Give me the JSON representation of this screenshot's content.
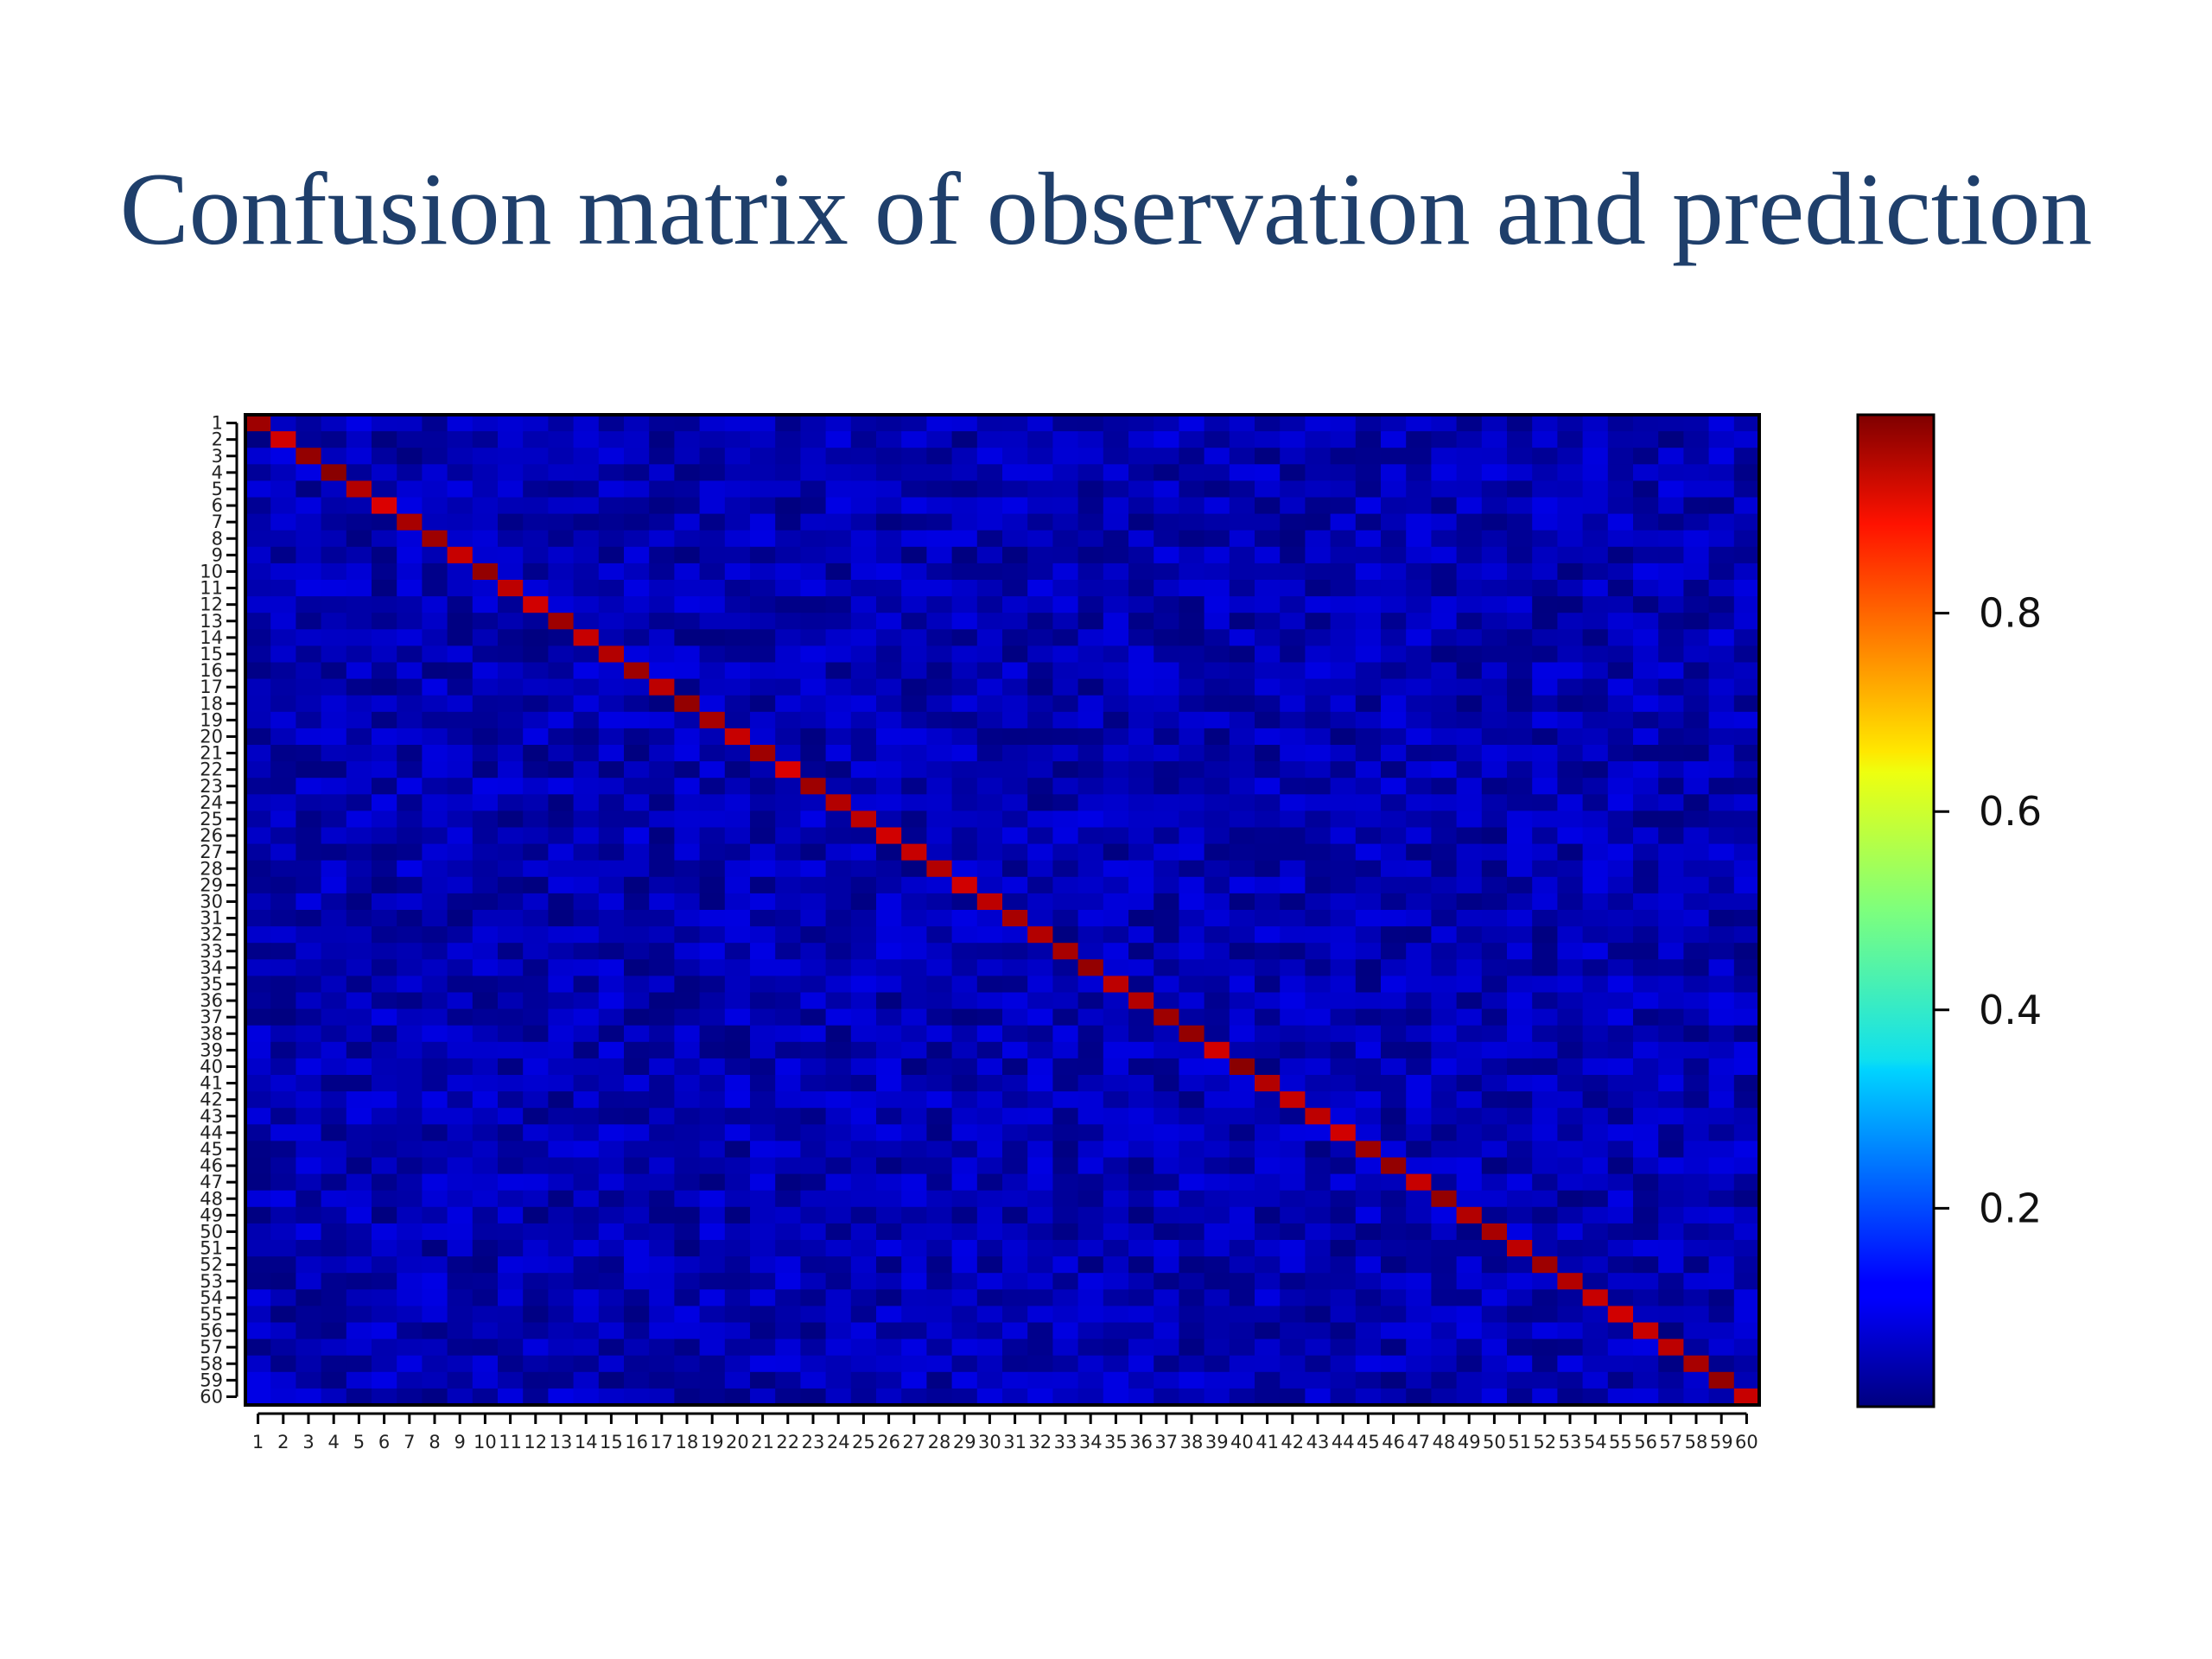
{
  "title": "Confusion matrix of observation and prediction",
  "chart_data": {
    "type": "heatmap",
    "title": "Confusion matrix of observation and prediction",
    "xlabel": "",
    "ylabel": "",
    "n_classes": 60,
    "x_tick_labels": [
      "1",
      "2",
      "3",
      "4",
      "5",
      "6",
      "7",
      "8",
      "9",
      "10",
      "11",
      "12",
      "13",
      "14",
      "15",
      "16",
      "17",
      "18",
      "19",
      "20",
      "21",
      "22",
      "23",
      "24",
      "25",
      "26",
      "27",
      "28",
      "29",
      "30",
      "31",
      "32",
      "33",
      "34",
      "35",
      "36",
      "37",
      "38",
      "39",
      "40",
      "41",
      "42",
      "43",
      "44",
      "45",
      "46",
      "47",
      "48",
      "49",
      "50",
      "51",
      "52",
      "53",
      "54",
      "55",
      "56",
      "57",
      "58",
      "59",
      "60"
    ],
    "y_tick_labels": [
      "1",
      "2",
      "3",
      "4",
      "5",
      "6",
      "7",
      "8",
      "9",
      "10",
      "11",
      "12",
      "13",
      "14",
      "15",
      "16",
      "17",
      "18",
      "19",
      "20",
      "21",
      "22",
      "23",
      "24",
      "25",
      "26",
      "27",
      "28",
      "29",
      "30",
      "31",
      "32",
      "33",
      "34",
      "35",
      "36",
      "37",
      "38",
      "39",
      "40",
      "41",
      "42",
      "43",
      "44",
      "45",
      "46",
      "47",
      "48",
      "49",
      "50",
      "51",
      "52",
      "53",
      "54",
      "55",
      "56",
      "57",
      "58",
      "59",
      "60"
    ],
    "diagonal_values": [
      0.97,
      0.92,
      0.98,
      0.99,
      0.95,
      0.91,
      0.96,
      0.97,
      0.93,
      0.98,
      0.94,
      0.92,
      0.97,
      0.93,
      0.95,
      0.97,
      0.94,
      0.98,
      0.96,
      0.93,
      0.97,
      0.91,
      0.97,
      0.95,
      0.94,
      0.92,
      0.93,
      0.95,
      0.92,
      0.94,
      0.96,
      0.95,
      0.96,
      0.98,
      0.94,
      0.95,
      0.97,
      0.98,
      0.92,
      0.99,
      0.95,
      0.93,
      0.94,
      0.92,
      0.97,
      0.98,
      0.93,
      0.98,
      0.95,
      0.96,
      0.94,
      0.97,
      0.95,
      0.93,
      0.92,
      0.93,
      0.94,
      0.96,
      0.98,
      0.93
    ],
    "off_diagonal_range": [
      0.0,
      0.1
    ],
    "colorbar": {
      "ticks": [
        0.2,
        0.4,
        0.6,
        0.8
      ],
      "tick_labels": [
        "0.2",
        "0.4",
        "0.6",
        "0.8"
      ],
      "range": [
        0.0,
        1.0
      ],
      "colormap": "jet"
    },
    "grid": false
  }
}
